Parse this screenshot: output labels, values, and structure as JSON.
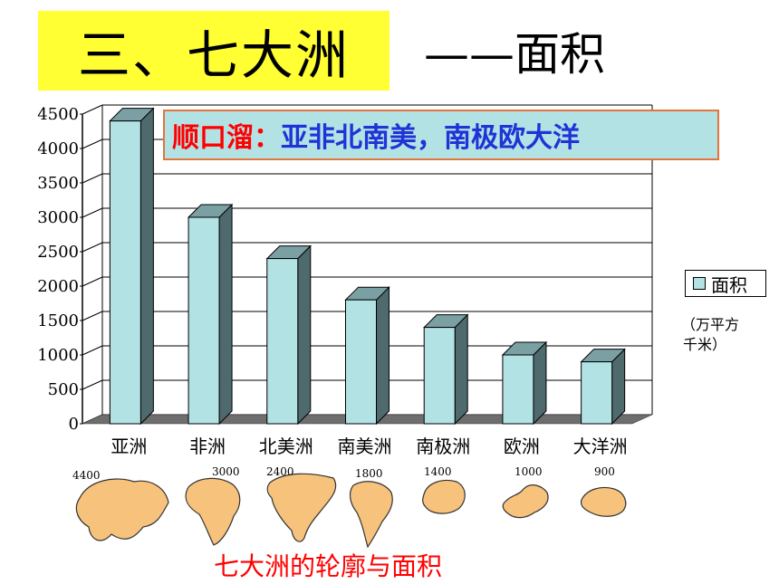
{
  "header": {
    "title": "三、七大洲",
    "subtitle": "——面积"
  },
  "mnemonic": {
    "label": "顺口溜：",
    "text": "亚非北南美，南极欧大洋"
  },
  "legend": {
    "label": "面积"
  },
  "unit": {
    "line1": "（万平方",
    "line2": "千米）"
  },
  "caption": "七大洲的轮廓与面积",
  "colors": {
    "bar_front": "#b3e2e5",
    "bar_top": "#7aa0a4",
    "bar_side": "#4f6a6d",
    "floor": "#6e6e6e",
    "title_bg": "#ffff33",
    "mnemonic_border": "#e4743a",
    "mnemonic_label": "#ff0000",
    "mnemonic_text": "#1f33d6",
    "caption": "#ff0000",
    "map_fill": "#f7c27c"
  },
  "chart_data": {
    "type": "bar",
    "categories": [
      "亚洲",
      "非洲",
      "北美洲",
      "南美洲",
      "南极洲",
      "欧洲",
      "大洋洲"
    ],
    "series": [
      {
        "name": "面积",
        "values": [
          4400,
          3000,
          2400,
          1800,
          1400,
          1000,
          900
        ]
      }
    ],
    "ylim": [
      0,
      4500
    ],
    "yticks": [
      "0",
      "500",
      "1000",
      "1500",
      "2000",
      "2500",
      "3000",
      "3500",
      "4000",
      "4500"
    ],
    "grid": true,
    "legend": "right",
    "map_labels": [
      "4400",
      "3000",
      "2400",
      "1800",
      "1400",
      "1000",
      "900"
    ]
  }
}
